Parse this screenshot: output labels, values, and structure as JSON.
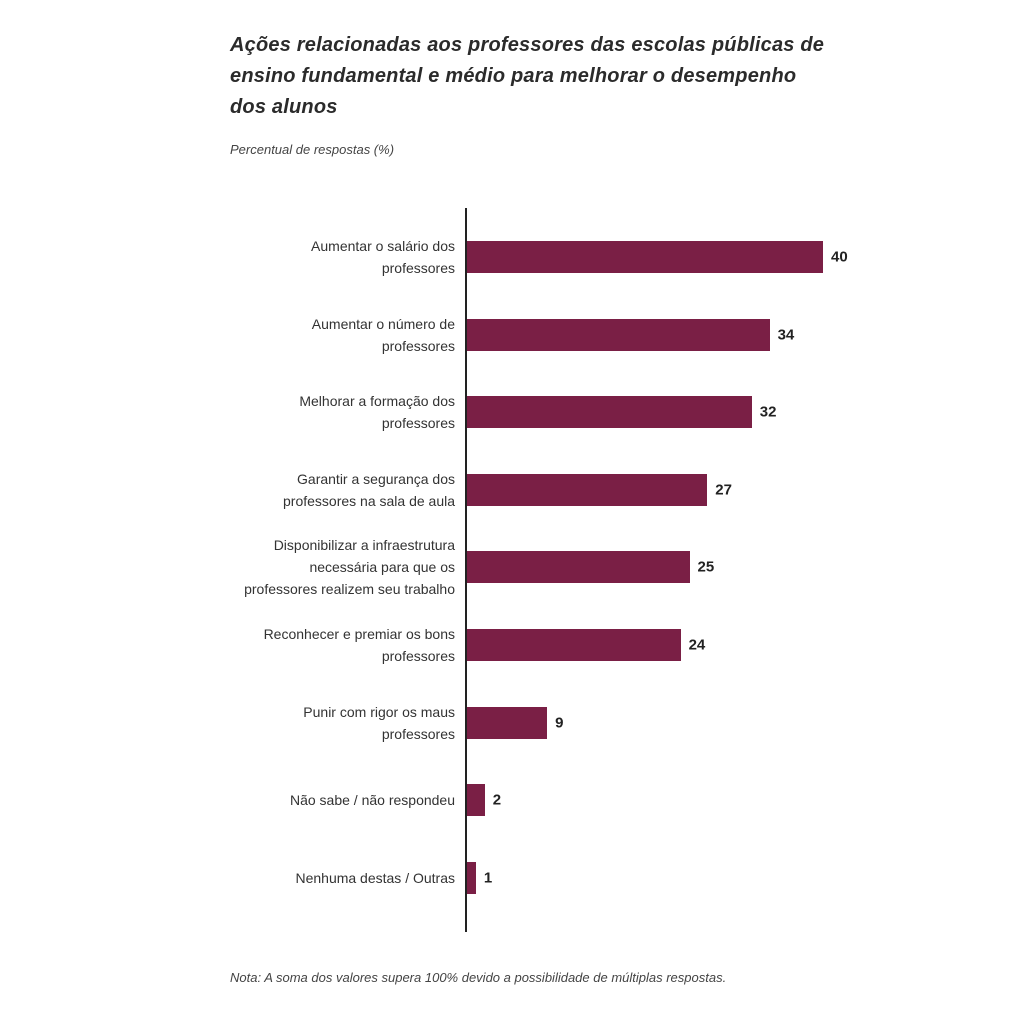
{
  "chart_data": {
    "type": "bar",
    "orientation": "horizontal",
    "title": "Ações relacionadas aos professores das escolas públicas de\nensino fundamental e médio para melhorar o desempenho\ndos alunos",
    "subtitle": "Percentual de respostas (%)",
    "note": "Nota: A soma dos valores supera 100% devido a possibilidade de múltiplas respostas.",
    "categories": [
      "Aumentar o salário dos\nprofessores",
      "Aumentar o número de\nprofessores",
      "Melhorar a formação dos\nprofessores",
      "Garantir a segurança dos\nprofessores na sala de aula",
      "Disponibilizar a infraestrutura\nnecessária para que os\nprofessores realizem seu trabalho",
      "Reconhecer e premiar os bons\nprofessores",
      "Punir com rigor os maus\nprofessores",
      "Não sabe / não respondeu",
      "Nenhuma destas / Outras"
    ],
    "values": [
      40,
      34,
      32,
      27,
      25,
      24,
      9,
      2,
      1
    ],
    "color": "#7a1f45"
  }
}
